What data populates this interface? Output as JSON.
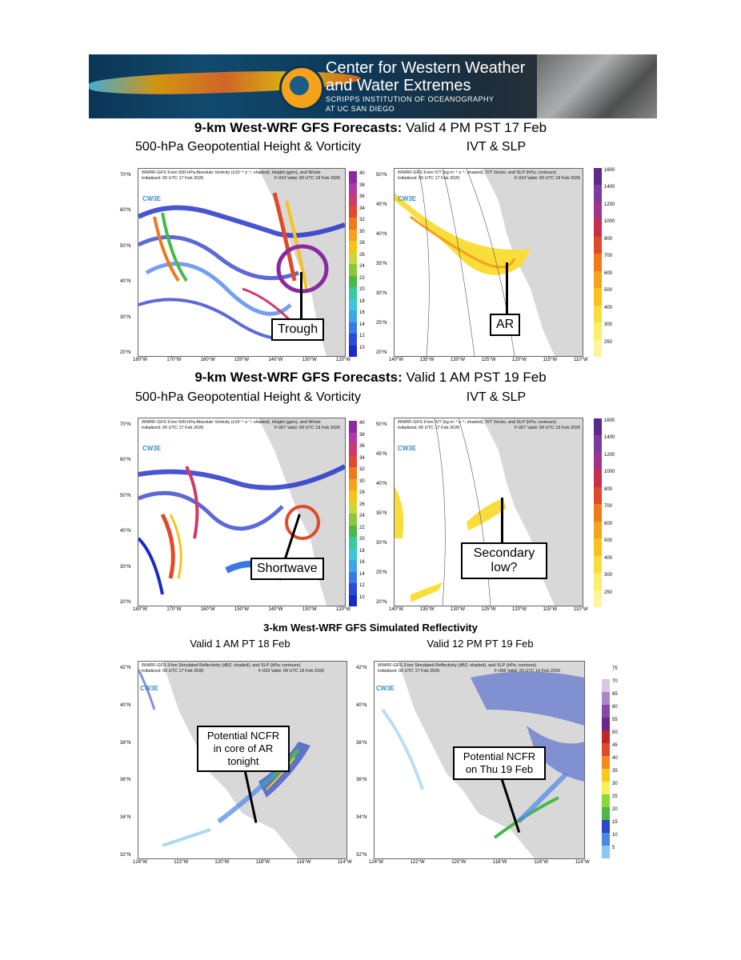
{
  "banner": {
    "line1": "Center for Western Weather",
    "line2": "and Water Extremes",
    "line3": "SCRIPPS INSTITUTION  OF OCEANOGRAPHY",
    "line4": "AT UC SAN DIEGO"
  },
  "sec1": {
    "bold": "9-km West-WRF GFS Forecasts:",
    "rest": " Valid 4 PM PST 17 Feb"
  },
  "sec2": {
    "bold": "9-km West-WRF GFS Forecasts:",
    "rest": " Valid 1 AM PST 19 Feb"
  },
  "sec3": {
    "title": "3-km West-WRF GFS Simulated Reflectivity"
  },
  "sub_vort": "500-hPa Geopotential Height & Vorticity",
  "sub_ivt": "IVT & SLP",
  "logo_text": "CW3E",
  "p1": {
    "h1": "WWRF-GFS 9-km 500-hPa Absolute Vorticity (x10⁻⁵ s⁻¹; shaded), Height (gpm), and Winds",
    "h2": "Initialized: 00 UTC 17 Feb 2026",
    "h3": "F-024  Valid: 00 UTC 18 Feb 2026",
    "callout": "Trough"
  },
  "p2": {
    "h1": "WWRF-GFS 9-km IVT (kg m⁻¹ s⁻¹; shaded), IVT Vector, and SLP (hPa; contours)",
    "h2": "Initialized: 00 UTC 17 Feb 2026",
    "h3": "F-024  Valid: 00 UTC 18 Feb 2026",
    "callout": "AR"
  },
  "p3": {
    "h1": "WWRF-GFS 9-km 500-hPa Absolute Vorticity (x10⁻⁵ s⁻¹; shaded), Height (gpm), and Winds",
    "h2": "Initialized: 00 UTC 17 Feb 2026",
    "h3": "F-057  Valid: 09 UTC 19 Feb 2026",
    "callout": "Shortwave"
  },
  "p4": {
    "h1": "WWRF-GFS 9-km IVT (kg m⁻¹ s⁻¹; shaded), IVT Vector, and SLP (hPa; contours)",
    "h2": "Initialized: 00 UTC 17 Feb 2026",
    "h3": "F-057  Valid: 09 UTC 19 Feb 2026",
    "callout": "Secondary low?"
  },
  "p5": {
    "caption": "Valid 1 AM PT 18 Feb",
    "h1": "WWRF-GFS 3-km Simulated Reflectivity (dBZ; shaded), and SLP (hPa; contours)",
    "h2": "Initialized: 00 UTC 17 Feb 2026",
    "h3": "F-033  Valid: 09 UTC 18 Feb 2026",
    "callout": "Potential NCFR in core of AR tonight"
  },
  "p6": {
    "caption": "Valid 12 PM PT 19 Feb",
    "h1": "WWRF-GFS 3-km Simulated Reflectivity (dBZ; shaded), and SLP (hPa; contours)",
    "h2": "Initialized: 00 UTC 17 Feb 2026",
    "h3": "F-068  Valid: 20 UTC 19 Feb 2026",
    "callout": "Potential NCFR on Thu 19 Feb"
  },
  "vort_lat": [
    "70°N",
    "60°N",
    "50°N",
    "40°N",
    "30°N",
    "20°N"
  ],
  "vort_lon": [
    "180°W",
    "170°W",
    "160°W",
    "150°W",
    "140°W",
    "130°W",
    "120°W"
  ],
  "vort_cbar": [
    "40",
    "38",
    "36",
    "34",
    "32",
    "30",
    "28",
    "26",
    "24",
    "22",
    "20",
    "18",
    "16",
    "14",
    "12",
    "10"
  ],
  "ivt_lat": [
    "50°N",
    "45°N",
    "40°N",
    "35°N",
    "30°N",
    "25°N",
    "20°N"
  ],
  "ivt_lon": [
    "140°W",
    "135°W",
    "130°W",
    "125°W",
    "120°W",
    "115°W",
    "110°W"
  ],
  "ivt_cbar": [
    "1600",
    "1400",
    "1200",
    "1000",
    "800",
    "700",
    "600",
    "500",
    "400",
    "300",
    "250"
  ],
  "ref_lat": [
    "42°N",
    "40°N",
    "38°N",
    "36°N",
    "34°N",
    "32°N"
  ],
  "ref_lon": [
    "124°W",
    "122°W",
    "120°W",
    "118°W",
    "116°W",
    "114°W"
  ],
  "ref_cbar": [
    "75",
    "70",
    "65",
    "60",
    "55",
    "50",
    "45",
    "40",
    "35",
    "30",
    "25",
    "20",
    "15",
    "10",
    "5"
  ],
  "colors": {
    "ivt": [
      "#5a2a8a",
      "#7a3aa0",
      "#a0348a",
      "#c8304a",
      "#e04a2a",
      "#f07a1a",
      "#f4a31a",
      "#f7c21a",
      "#f9dd3a",
      "#fbee6a",
      "#fdf59a"
    ],
    "vort": [
      "#8a2aa0",
      "#b03aa0",
      "#d03a6a",
      "#e04a2a",
      "#f07a1a",
      "#f4a31a",
      "#f7c21a",
      "#c8d83a",
      "#8ac83a",
      "#4ab84a",
      "#3ac8a0",
      "#3ac8d8",
      "#3aa8e8",
      "#3a78e8",
      "#2a4ad8",
      "#1a2ac8"
    ],
    "ref": [
      "#ffffff",
      "#d8c8e8",
      "#a888c8",
      "#8848a8",
      "#6a2888",
      "#c02828",
      "#e04a2a",
      "#f48a1a",
      "#f8c81a",
      "#f8f05a",
      "#8ad83a",
      "#4ab84a",
      "#2a48c8",
      "#4a88e8",
      "#8ac8f0"
    ]
  }
}
